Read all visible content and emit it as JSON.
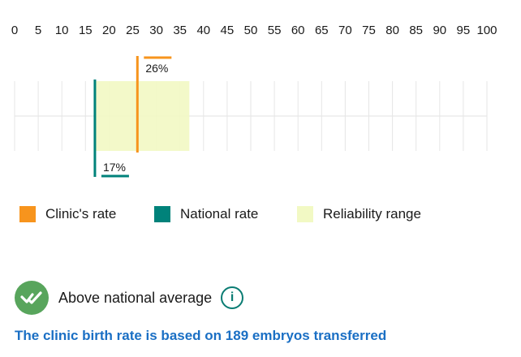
{
  "chart_data": {
    "type": "range",
    "x": [
      0,
      5,
      10,
      15,
      20,
      25,
      30,
      35,
      40,
      45,
      50,
      55,
      60,
      65,
      70,
      75,
      80,
      85,
      90,
      95,
      100
    ],
    "xlim": [
      0,
      100
    ],
    "clinic_rate": 26,
    "clinic_label": "26%",
    "national_rate": 17,
    "national_label": "17%",
    "reliability_range": [
      17,
      37
    ],
    "colors": {
      "clinic": "#f7941d",
      "national": "#00827a",
      "reliability": "#f2f9c4",
      "grid": "#e6e6e6"
    }
  },
  "legend": {
    "clinic": "Clinic's rate",
    "national": "National rate",
    "reliability": "Reliability range"
  },
  "status": {
    "text": "Above national average",
    "icon": "check-badge-icon",
    "info_icon": "info-icon",
    "info_glyph": "i"
  },
  "footnote": "The clinic birth rate is based on 189 embryos transferred"
}
